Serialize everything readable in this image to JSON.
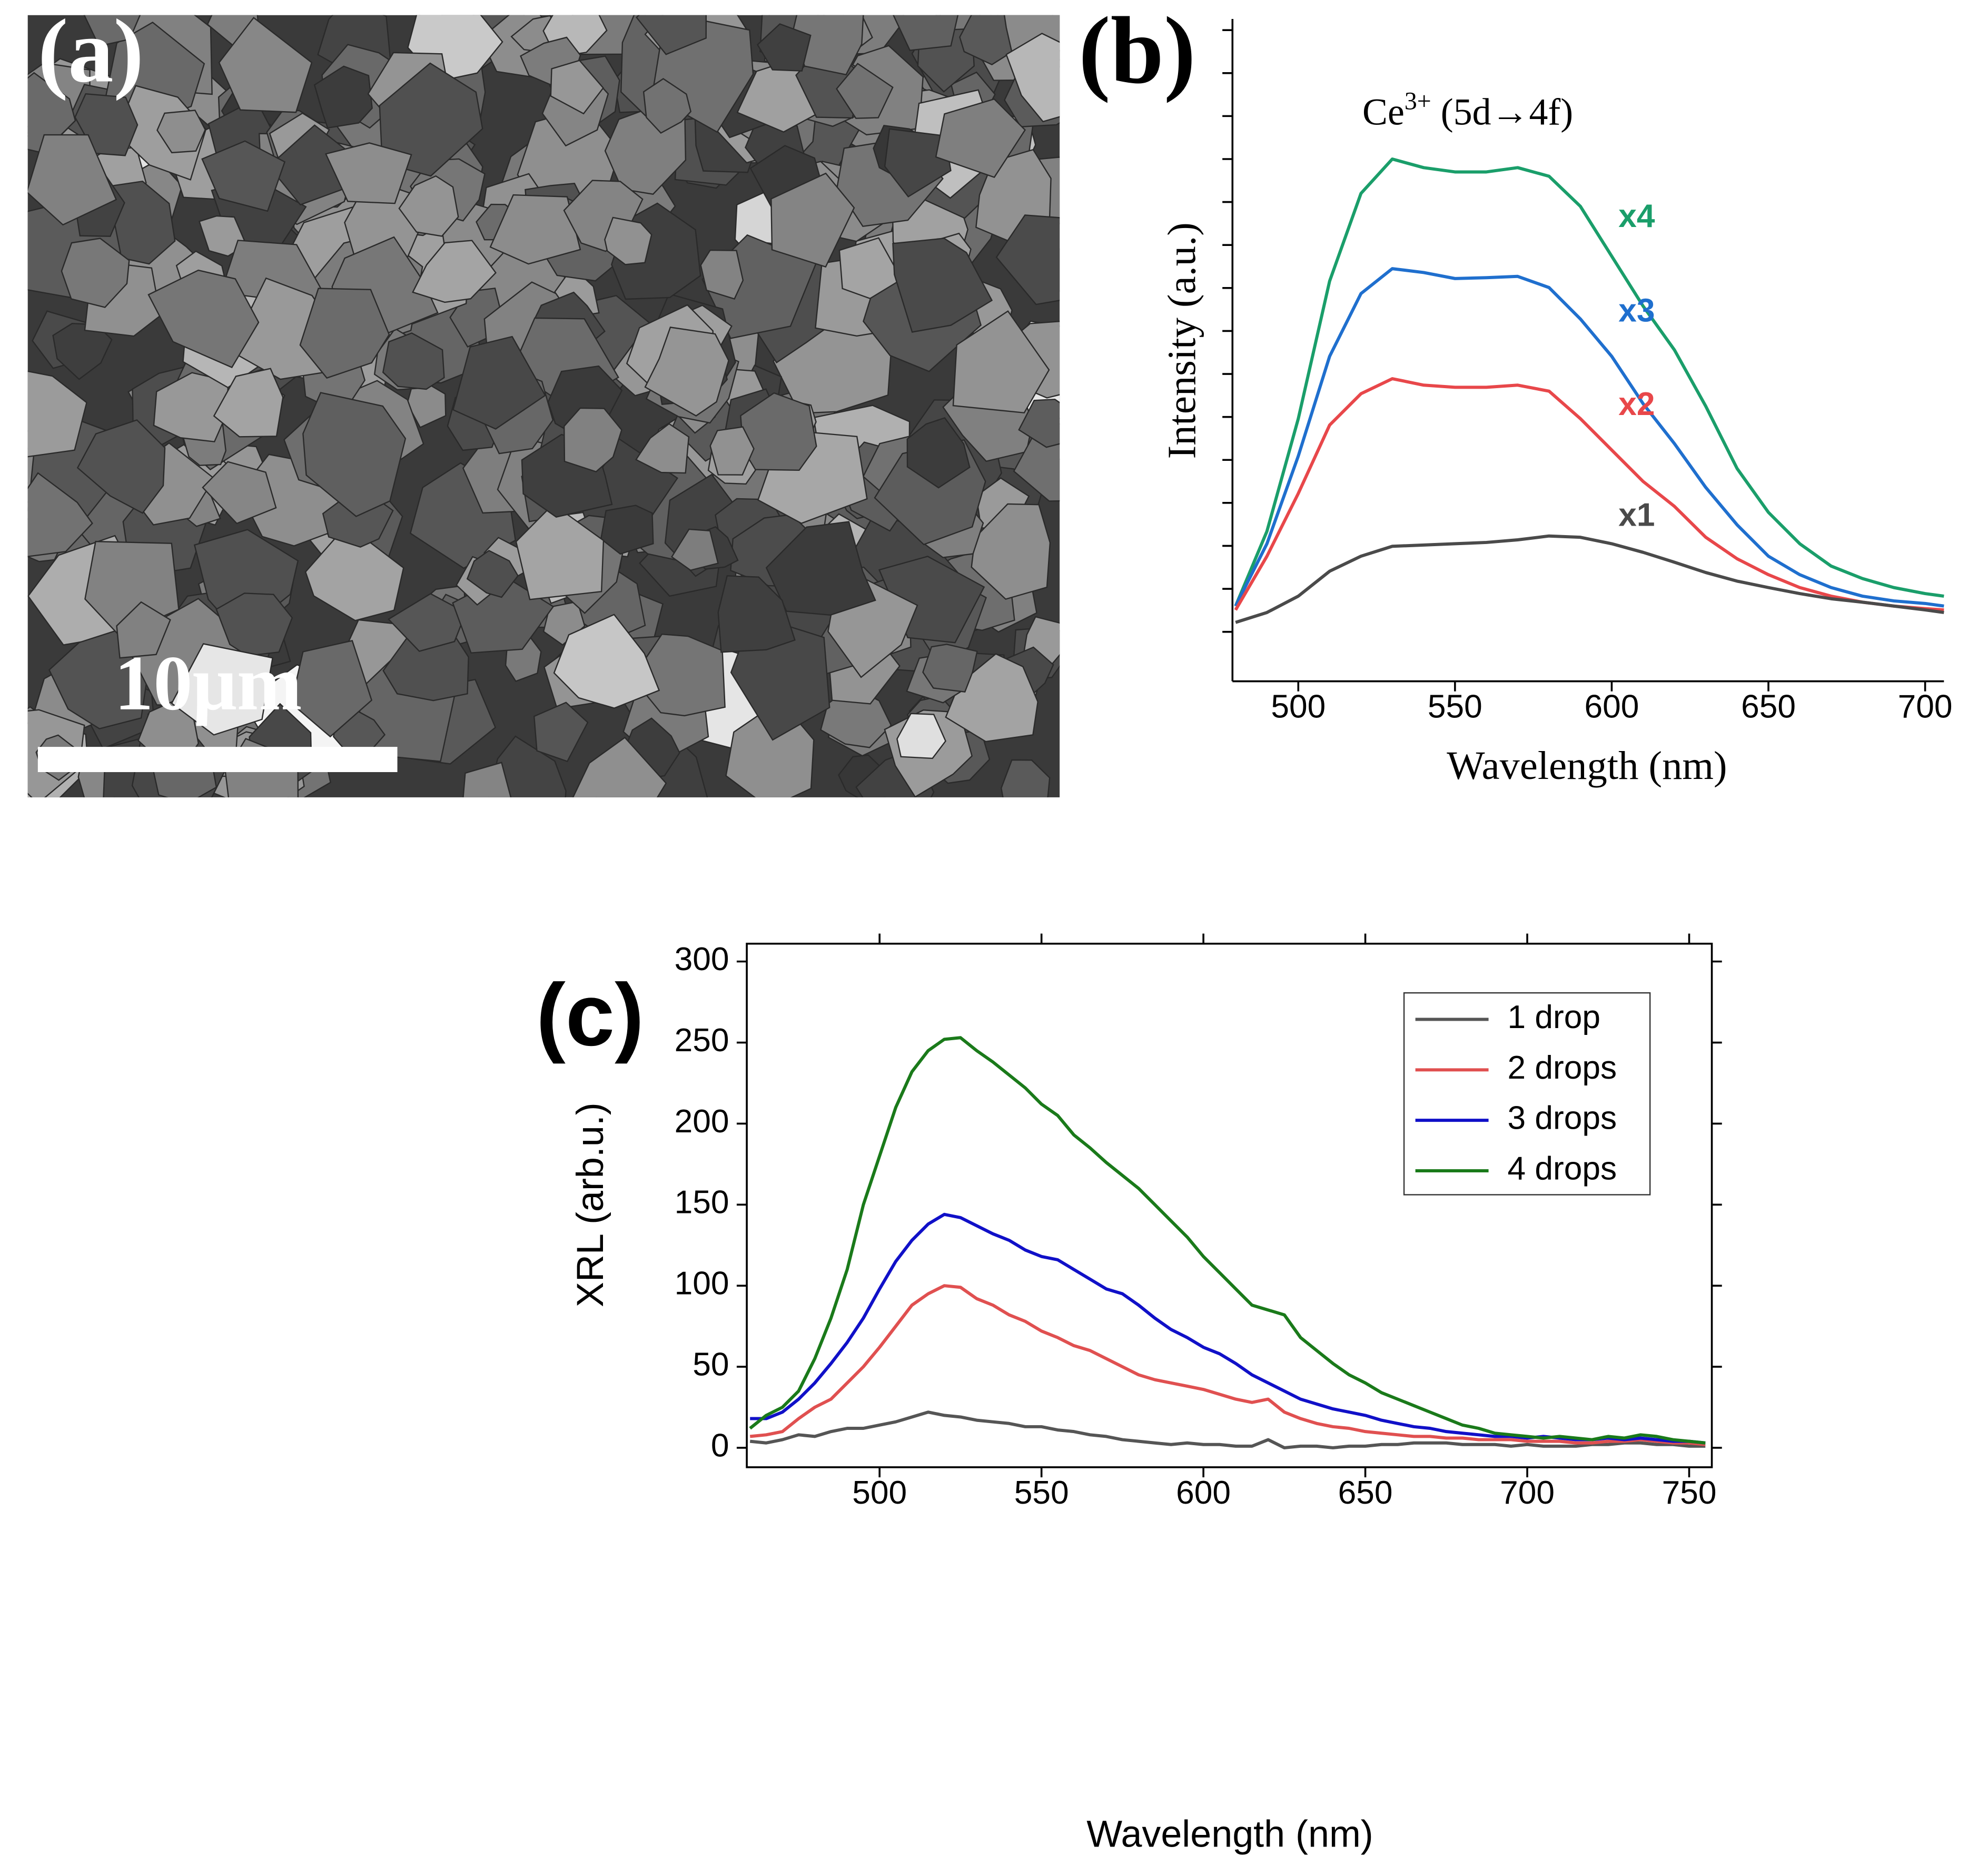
{
  "panel_a": {
    "label": "(a)",
    "scale_bar": "10μm"
  },
  "chart_data": [
    {
      "type": "line",
      "label": "(b)",
      "annotation": {
        "base": "Ce",
        "sup": "3+",
        "rest": " (5d→4f)"
      },
      "x_label": "Wavelength (nm)",
      "y_label": "Intensity (a.u.)",
      "x": [
        480,
        490,
        500,
        510,
        520,
        530,
        540,
        550,
        560,
        570,
        580,
        590,
        600,
        610,
        620,
        630,
        640,
        650,
        660,
        670,
        680,
        690,
        700,
        706
      ],
      "xlim": [
        479,
        706
      ],
      "xticks": [
        500,
        550,
        600,
        650,
        700
      ],
      "ylim": [
        -0.15,
        15.26
      ],
      "yticks": [
        1,
        2,
        3,
        4,
        5,
        6,
        7,
        8,
        9,
        10,
        11,
        12,
        13,
        14,
        15
      ],
      "ytick_labels": false,
      "series": [
        {
          "name": "x4",
          "color": "#1a9e6a",
          "values": [
            1.6,
            3.34,
            5.96,
            9.16,
            11.2,
            12.0,
            11.8,
            11.7,
            11.7,
            11.8,
            11.6,
            10.9,
            9.74,
            8.58,
            7.56,
            6.25,
            4.8,
            3.78,
            3.05,
            2.53,
            2.24,
            2.03,
            1.89,
            1.83
          ]
        },
        {
          "name": "x3",
          "color": "#1f6fce",
          "values": [
            1.6,
            3.05,
            5.09,
            7.41,
            8.87,
            9.45,
            9.36,
            9.22,
            9.24,
            9.27,
            9.01,
            8.28,
            7.41,
            6.31,
            5.38,
            4.36,
            3.49,
            2.76,
            2.33,
            2.03,
            1.83,
            1.72,
            1.66,
            1.6
          ]
        },
        {
          "name": "x2",
          "color": "#e8474a",
          "values": [
            1.51,
            2.76,
            4.22,
            5.81,
            6.54,
            6.89,
            6.74,
            6.69,
            6.69,
            6.74,
            6.6,
            5.96,
            5.23,
            4.5,
            3.92,
            3.2,
            2.7,
            2.33,
            2.03,
            1.83,
            1.69,
            1.6,
            1.54,
            1.51
          ]
        },
        {
          "name": "x1",
          "color": "#4a4a4a",
          "values": [
            1.22,
            1.45,
            1.83,
            2.41,
            2.76,
            2.99,
            3.02,
            3.05,
            3.08,
            3.14,
            3.23,
            3.2,
            3.05,
            2.85,
            2.62,
            2.38,
            2.18,
            2.03,
            1.89,
            1.77,
            1.69,
            1.6,
            1.51,
            1.45
          ]
        }
      ]
    },
    {
      "type": "line",
      "label": "(c)",
      "x_label": "Wavelength (nm)",
      "y_label": "XRL (arb.u.)",
      "x": [
        460,
        465,
        470,
        475,
        480,
        485,
        490,
        495,
        500,
        505,
        510,
        515,
        520,
        525,
        530,
        535,
        540,
        545,
        550,
        555,
        560,
        565,
        570,
        575,
        580,
        585,
        590,
        595,
        600,
        605,
        610,
        615,
        620,
        625,
        630,
        635,
        640,
        645,
        650,
        655,
        660,
        665,
        670,
        675,
        680,
        685,
        690,
        695,
        700,
        705,
        710,
        715,
        720,
        725,
        730,
        735,
        740,
        745,
        750,
        755
      ],
      "xlim": [
        459,
        757
      ],
      "xticks": [
        500,
        550,
        600,
        650,
        700,
        750
      ],
      "ylim": [
        -12,
        311
      ],
      "yticks": [
        0,
        50,
        100,
        150,
        200,
        250,
        300
      ],
      "legend": "top-right",
      "series": [
        {
          "name": "1 drop",
          "color": "#555555",
          "values": [
            4,
            3,
            5,
            8,
            7,
            10,
            12,
            12,
            14,
            16,
            19,
            22,
            20,
            19,
            17,
            16,
            15,
            13,
            13,
            11,
            10,
            8,
            7,
            5,
            4,
            3,
            2,
            3,
            2,
            2,
            1,
            1,
            5,
            0,
            1,
            1,
            0,
            1,
            1,
            2,
            2,
            3,
            3,
            3,
            2,
            2,
            2,
            1,
            2,
            1,
            1,
            1,
            2,
            2,
            3,
            3,
            2,
            2,
            1,
            1
          ]
        },
        {
          "name": "2 drops",
          "color": "#e05050",
          "values": [
            7,
            8,
            10,
            18,
            25,
            30,
            40,
            50,
            62,
            75,
            88,
            95,
            100,
            99,
            92,
            88,
            82,
            78,
            72,
            68,
            63,
            60,
            55,
            50,
            45,
            42,
            40,
            38,
            36,
            33,
            30,
            28,
            30,
            22,
            18,
            15,
            13,
            12,
            10,
            9,
            8,
            7,
            7,
            6,
            6,
            5,
            5,
            5,
            4,
            4,
            4,
            3,
            3,
            4,
            4,
            5,
            4,
            3,
            3,
            2
          ]
        },
        {
          "name": "3 drops",
          "color": "#1010c8",
          "values": [
            18,
            18,
            22,
            30,
            40,
            52,
            65,
            80,
            98,
            115,
            128,
            138,
            144,
            142,
            137,
            132,
            128,
            122,
            118,
            116,
            110,
            104,
            98,
            95,
            88,
            80,
            73,
            68,
            62,
            58,
            52,
            45,
            40,
            35,
            30,
            27,
            24,
            22,
            20,
            17,
            15,
            13,
            12,
            10,
            9,
            8,
            7,
            7,
            6,
            7,
            6,
            5,
            5,
            6,
            5,
            6,
            5,
            4,
            4,
            3
          ]
        },
        {
          "name": "4 drops",
          "color": "#1a7a1a",
          "values": [
            12,
            20,
            25,
            35,
            55,
            80,
            110,
            150,
            180,
            210,
            232,
            245,
            252,
            253,
            245,
            238,
            230,
            222,
            212,
            205,
            193,
            185,
            176,
            168,
            160,
            150,
            140,
            130,
            118,
            108,
            98,
            88,
            85,
            82,
            68,
            60,
            52,
            45,
            40,
            34,
            30,
            26,
            22,
            18,
            14,
            12,
            9,
            8,
            7,
            6,
            7,
            6,
            5,
            7,
            6,
            8,
            7,
            5,
            4,
            3
          ]
        }
      ]
    }
  ]
}
